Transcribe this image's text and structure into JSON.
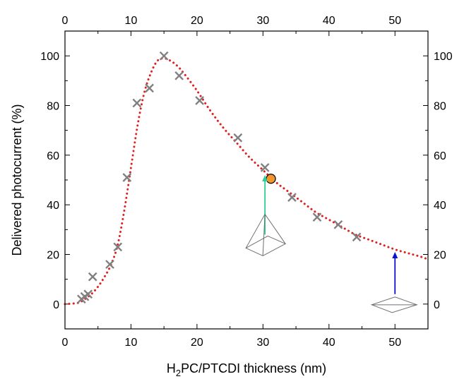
{
  "chart_data": {
    "type": "scatter",
    "xlabel_parts": [
      "H",
      "2",
      "PC/PTCDI thickness (nm)"
    ],
    "ylabel": "Delivered photocurrent (%)",
    "xlim": [
      0,
      55
    ],
    "ylim": [
      -10,
      110
    ],
    "x_ticks": [
      0,
      10,
      20,
      30,
      40,
      50
    ],
    "y_ticks": [
      0,
      20,
      40,
      60,
      80,
      100
    ],
    "grid": false,
    "colors": {
      "markers": "#808080",
      "fit_line": "#e02020",
      "highlight": "#f0962a",
      "green_arrow": "#2ecc8f",
      "blue_arrow": "#1010cc",
      "pyramid": "#707070"
    },
    "series": [
      {
        "kind": "markers",
        "marker": "x",
        "x": [
          2.5,
          3.0,
          3.5,
          4.2,
          6.8,
          8.0,
          9.4,
          10.9,
          12.8,
          15.0,
          17.3,
          20.4,
          26.2,
          30.3,
          34.4,
          38.2,
          41.4,
          44.2
        ],
        "y": [
          2,
          3,
          4,
          11,
          16,
          23,
          51,
          81,
          87,
          100,
          92,
          82,
          67,
          55,
          43,
          35,
          32,
          27
        ]
      },
      {
        "kind": "fit-line",
        "style": "dotted",
        "x": [
          0,
          2,
          3,
          4,
          5,
          6,
          7,
          8,
          9,
          10,
          11,
          12,
          13,
          14,
          15,
          16,
          17,
          18,
          20,
          22,
          24,
          26,
          28,
          30,
          32,
          34,
          36,
          38,
          40,
          42,
          44,
          46,
          48,
          50,
          52,
          54,
          55
        ],
        "y": [
          0,
          0.5,
          2,
          4,
          7,
          11,
          16,
          24,
          38,
          55,
          72,
          85,
          93,
          98,
          99,
          98,
          96,
          93,
          86,
          78,
          71,
          65,
          59,
          54,
          49,
          45,
          41,
          37,
          34,
          31,
          28,
          26,
          24,
          22,
          20.5,
          19,
          18
        ]
      }
    ],
    "highlight_point": {
      "marker": "circle",
      "x": 31.2,
      "y": 50.5
    },
    "annotations": [
      {
        "kind": "arrow",
        "color_key": "green_arrow",
        "x": 30.3,
        "y_from": 28,
        "y_to": 52
      },
      {
        "kind": "arrow",
        "color_key": "blue_arrow",
        "x": 50.0,
        "y_from": 4,
        "y_to": 21
      },
      {
        "kind": "pyramid-icon",
        "size": "tall",
        "x": 30.3,
        "y": 24
      },
      {
        "kind": "pyramid-icon",
        "size": "flat",
        "x": 50.0,
        "y": 0
      }
    ]
  }
}
